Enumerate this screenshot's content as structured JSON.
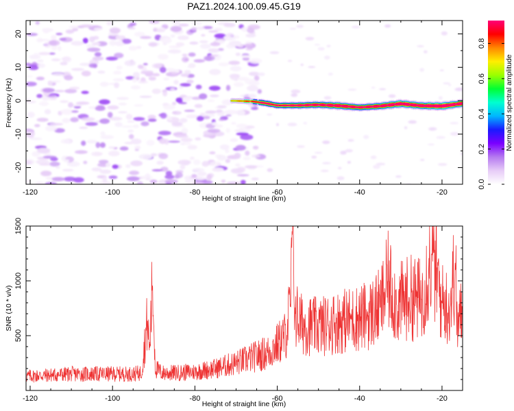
{
  "title": "PAZ1.2024.100.09.45.G19",
  "chart_data": [
    {
      "type": "heatmap",
      "xlabel": "Height of straight line (km)",
      "ylabel": "Frequency (Hz)",
      "xlim": [
        -121,
        -15
      ],
      "ylim": [
        -25,
        24
      ],
      "xticks": [
        -120,
        -100,
        -80,
        -60,
        -40,
        -20
      ],
      "yticks": [
        -20,
        -10,
        0,
        10,
        20
      ],
      "colorbar": {
        "label": "Normalized spectral amplitude",
        "range": [
          0,
          0.93
        ],
        "ticks": [
          0.0,
          0.2,
          0.4,
          0.6,
          0.8
        ],
        "colormap": [
          "#ffffff",
          "#e7ccf7",
          "#b57af0",
          "#7a00ff",
          "#1a1aff",
          "#00b7ff",
          "#00ffd0",
          "#00ff33",
          "#9cff00",
          "#ffee00",
          "#ff8800",
          "#ff0000",
          "#ff0077"
        ]
      },
      "noise_region_x": [
        -121,
        -64
      ],
      "signal_line": {
        "x": [
          -71,
          -66,
          -63,
          -60,
          -55,
          -50,
          -45,
          -40,
          -35,
          -30,
          -25,
          -20,
          -15
        ],
        "frequency": [
          0.0,
          -0.2,
          -0.7,
          -1.4,
          -1.4,
          -1.2,
          -1.5,
          -2.0,
          -1.6,
          -0.9,
          -1.5,
          -1.6,
          -0.8
        ],
        "amplitude": [
          0.22,
          0.38,
          0.55,
          0.48,
          0.58,
          0.62,
          0.72,
          0.6,
          0.68,
          0.78,
          0.7,
          0.82,
          0.7
        ]
      }
    },
    {
      "type": "line",
      "xlabel": "Height of straight line (km)",
      "ylabel": "SNR (10 * v/v)",
      "xlim": [
        -121,
        -15
      ],
      "ylim": [
        0,
        1500
      ],
      "xticks": [
        -120,
        -100,
        -80,
        -60,
        -40,
        -20
      ],
      "yticks": [
        500,
        1000,
        1500
      ],
      "color": "#ee3333",
      "series": [
        {
          "x": [
            -121,
            -115,
            -110,
            -105,
            -100,
            -95,
            -93,
            -91.5,
            -91,
            -90.3,
            -89.6,
            -88,
            -85,
            -80,
            -75,
            -70,
            -66,
            -62,
            -60,
            -58,
            -56.8,
            -56.4,
            -55.6,
            -54,
            -50,
            -46,
            -42,
            -38,
            -35,
            -33,
            -31,
            -28,
            -25,
            -22.5,
            -20,
            -18,
            -16.8,
            -16.3,
            -15
          ],
          "y": [
            130,
            140,
            150,
            150,
            150,
            150,
            160,
            650,
            350,
            990,
            200,
            160,
            160,
            170,
            200,
            250,
            300,
            350,
            420,
            500,
            780,
            1480,
            700,
            600,
            580,
            620,
            650,
            680,
            760,
            1000,
            780,
            850,
            830,
            1250,
            800,
            760,
            1170,
            560,
            760
          ]
        }
      ]
    }
  ]
}
